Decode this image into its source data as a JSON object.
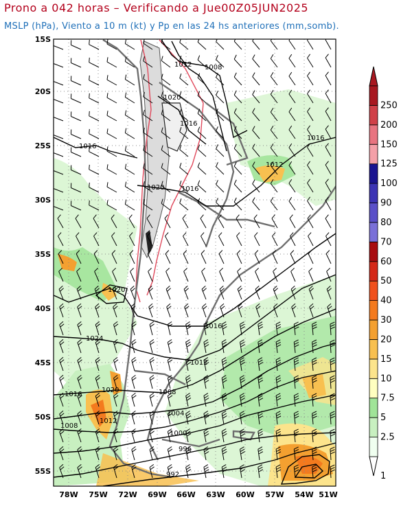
{
  "header": {
    "title": "Prono a 042 horas – Verificando a Jue00Z05JUN2025",
    "subtitle": "MSLP (hPa), Viento a 10 m (kt) y Pp en las 24 hs anteriores (mm,somb)."
  },
  "map": {
    "lat_labels": [
      "15S",
      "20S",
      "25S",
      "30S",
      "35S",
      "40S",
      "45S",
      "50S",
      "55S"
    ],
    "lon_labels": [
      "78W",
      "75W",
      "72W",
      "69W",
      "66W",
      "63W",
      "60W",
      "57W",
      "54W",
      "51W"
    ],
    "isobar_labels": [
      "1012",
      "1008",
      "1020",
      "1016",
      "1016",
      "1016",
      "1012",
      "1020",
      "1016",
      "1020",
      "1016",
      "1024",
      "1012",
      "1016",
      "1020",
      "1008",
      "1008",
      "1012",
      "1004",
      "1000",
      "996",
      "992"
    ],
    "colors": {
      "isobar": "#000000",
      "coast": "#6e6e6e",
      "relief_contour": "#e0475a",
      "precip_light": "#c8f0c0",
      "precip_mid": "#8fdc88",
      "precip_heavy": "#f4a623"
    }
  },
  "colorbar": {
    "labels": [
      "1",
      "2.5",
      "5",
      "7.5",
      "10",
      "15",
      "20",
      "30",
      "40",
      "50",
      "60",
      "70",
      "80",
      "90",
      "100",
      "125",
      "150",
      "200",
      "250"
    ],
    "colors": [
      "#f0fff0",
      "#c8f0c0",
      "#a0e498",
      "#ffffc0",
      "#fce48c",
      "#f8c050",
      "#f4a030",
      "#f47a1e",
      "#f0501c",
      "#d42818",
      "#a80c10",
      "#7a70d8",
      "#5a50c8",
      "#3c34b4",
      "#1a1490",
      "#f4a0a8",
      "#e87480",
      "#d04048",
      "#a81820"
    ]
  }
}
